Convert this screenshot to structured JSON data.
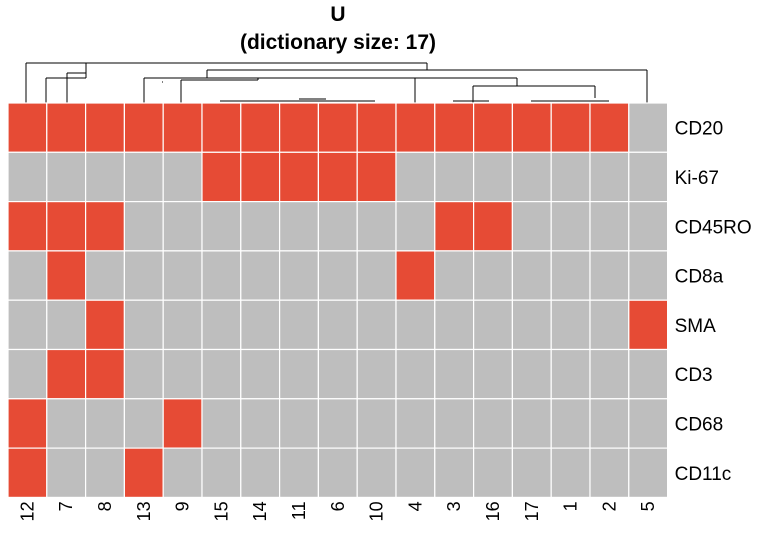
{
  "chart_data": {
    "type": "heatmap",
    "title": "U",
    "subtitle": "(dictionary size: 17)",
    "columns": [
      "12",
      "7",
      "8",
      "13",
      "9",
      "15",
      "14",
      "11",
      "6",
      "10",
      "4",
      "3",
      "16",
      "17",
      "1",
      "2",
      "5"
    ],
    "rows": [
      "CD20",
      "Ki-67",
      "CD45RO",
      "CD8a",
      "SMA",
      "CD3",
      "CD68",
      "CD11c"
    ],
    "values": [
      [
        1,
        1,
        1,
        1,
        1,
        1,
        1,
        1,
        1,
        1,
        1,
        1,
        1,
        1,
        1,
        1,
        0
      ],
      [
        0,
        0,
        0,
        0,
        0,
        1,
        1,
        1,
        1,
        1,
        0,
        0,
        0,
        0,
        0,
        0,
        0
      ],
      [
        1,
        1,
        1,
        0,
        0,
        0,
        0,
        0,
        0,
        0,
        0,
        1,
        1,
        0,
        0,
        0,
        0
      ],
      [
        0,
        1,
        0,
        0,
        0,
        0,
        0,
        0,
        0,
        0,
        1,
        0,
        0,
        0,
        0,
        0,
        0
      ],
      [
        0,
        0,
        1,
        0,
        0,
        0,
        0,
        0,
        0,
        0,
        0,
        0,
        0,
        0,
        0,
        0,
        1
      ],
      [
        0,
        1,
        1,
        0,
        0,
        0,
        0,
        0,
        0,
        0,
        0,
        0,
        0,
        0,
        0,
        0,
        0
      ],
      [
        1,
        0,
        0,
        0,
        1,
        0,
        0,
        0,
        0,
        0,
        0,
        0,
        0,
        0,
        0,
        0,
        0
      ],
      [
        1,
        0,
        0,
        1,
        0,
        0,
        0,
        0,
        0,
        0,
        0,
        0,
        0,
        0,
        0,
        0,
        0
      ]
    ],
    "colors": {
      "on": "#e64b35",
      "off": "#bebebe",
      "cell_border": "#ffffff",
      "dendrogram": "#000000"
    },
    "column_dendrogram": true,
    "row_labels_position": "right",
    "column_labels_rotation": "vertical",
    "legend": false
  }
}
